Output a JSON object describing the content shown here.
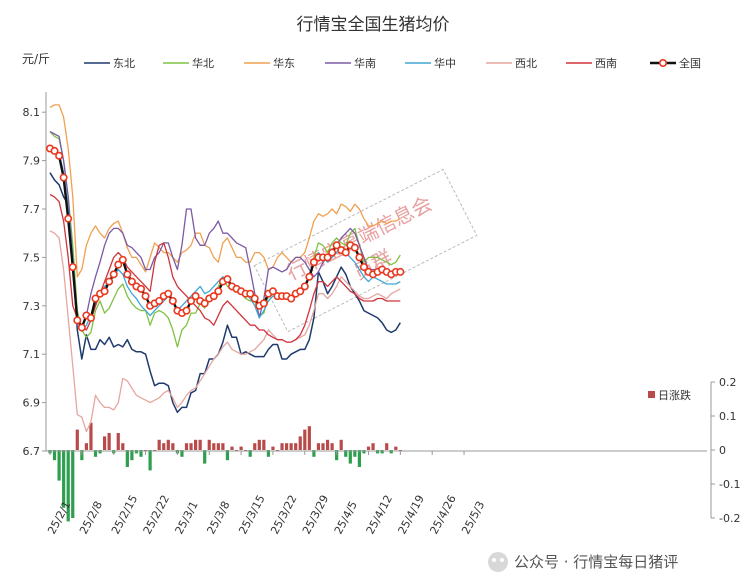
{
  "chart_data": {
    "type": "line",
    "title": "行情宝全国生猪均价",
    "ylabel": "元/斤",
    "ylim": [
      6.7,
      8.2
    ],
    "yticks": [
      "8.1",
      "7.9",
      "7.7",
      "7.5",
      "7.3",
      "7.1",
      "6.9",
      "6.7"
    ],
    "y2lim": [
      -0.2,
      0.2
    ],
    "y2ticks": [
      "0.2",
      "0.1",
      "0",
      "-0.1",
      "-0.2"
    ],
    "xticks": [
      "25/2/1",
      "25/2/8",
      "25/2/15",
      "25/2/22",
      "25/3/1",
      "25/3/8",
      "25/3/15",
      "25/3/22",
      "25/3/29",
      "25/4/5",
      "25/4/12",
      "25/4/19",
      "25/4/26",
      "25/5/3"
    ],
    "legend_position": "top",
    "bar_series": {
      "name": "日涨跌",
      "color": "#b94a4a",
      "color_negative": "#2e9e4f",
      "values": [
        -0.01,
        -0.03,
        -0.09,
        -0.17,
        -0.21,
        -0.2,
        0.06,
        -0.03,
        0.02,
        0.08,
        -0.02,
        -0.01,
        0.04,
        0.05,
        -0.01,
        0.05,
        0.02,
        -0.05,
        -0.03,
        -0.01,
        -0.02,
        0.0,
        -0.06,
        0.0,
        0.03,
        0.02,
        0.03,
        0.02,
        -0.01,
        -0.02,
        0.02,
        0.02,
        0.03,
        0.03,
        -0.04,
        0.03,
        0.02,
        0.02,
        0.02,
        -0.03,
        0.01,
        0.0,
        0.01,
        0.0,
        -0.02,
        0.02,
        0.03,
        0.03,
        -0.02,
        0.01,
        0.0,
        0.02,
        0.02,
        0.02,
        0.02,
        0.04,
        0.06,
        0.07,
        -0.02,
        0.02,
        0.02,
        0.03,
        0.02,
        -0.03,
        0.03,
        -0.02,
        -0.04,
        -0.02,
        -0.05,
        -0.01,
        0.01,
        0.02,
        -0.01,
        -0.01,
        0.02,
        -0.01,
        0.01,
        0.0
      ]
    },
    "series": [
      {
        "name": "东北",
        "color": "#1f3a6e",
        "width": 1.5,
        "values": [
          7.85,
          7.82,
          7.8,
          7.75,
          7.72,
          7.48,
          7.2,
          7.08,
          7.18,
          7.12,
          7.12,
          7.16,
          7.14,
          7.17,
          7.13,
          7.14,
          7.13,
          7.16,
          7.12,
          7.11,
          7.11,
          7.1,
          7.03,
          6.97,
          6.98,
          6.98,
          6.97,
          6.9,
          6.86,
          6.88,
          6.88,
          6.94,
          6.95,
          7.02,
          7.02,
          7.08,
          7.08,
          7.1,
          7.15,
          7.22,
          7.17,
          7.17,
          7.1,
          7.11,
          7.1,
          7.09,
          7.09,
          7.09,
          7.12,
          7.14,
          7.14,
          7.08,
          7.08,
          7.1,
          7.11,
          7.12,
          7.12,
          7.16,
          7.25,
          7.44,
          7.4,
          7.35,
          7.38,
          7.42,
          7.46,
          7.43,
          7.38,
          7.35,
          7.32,
          7.28,
          7.27,
          7.26,
          7.25,
          7.23,
          7.2,
          7.19,
          7.2,
          7.23
        ]
      },
      {
        "name": "华北",
        "color": "#7fc241",
        "width": 1.3,
        "values": [
          8.02,
          8.0,
          7.99,
          7.9,
          7.75,
          7.55,
          7.28,
          7.2,
          7.17,
          7.19,
          7.28,
          7.32,
          7.27,
          7.29,
          7.33,
          7.37,
          7.39,
          7.34,
          7.31,
          7.29,
          7.28,
          7.28,
          7.22,
          7.27,
          7.28,
          7.27,
          7.25,
          7.2,
          7.13,
          7.2,
          7.22,
          7.27,
          7.27,
          7.31,
          7.29,
          7.34,
          7.34,
          7.38,
          7.42,
          7.38,
          7.37,
          7.36,
          7.35,
          7.33,
          7.32,
          7.32,
          7.26,
          7.27,
          7.34,
          7.36,
          7.35,
          7.33,
          7.33,
          7.33,
          7.34,
          7.35,
          7.38,
          7.42,
          7.5,
          7.56,
          7.55,
          7.52,
          7.56,
          7.58,
          7.56,
          7.55,
          7.6,
          7.62,
          7.55,
          7.48,
          7.5,
          7.5,
          7.5,
          7.49,
          7.48,
          7.47,
          7.48,
          7.51
        ]
      },
      {
        "name": "华东",
        "color": "#f0a050",
        "width": 1.3,
        "values": [
          8.12,
          8.13,
          8.13,
          8.08,
          7.95,
          7.75,
          7.42,
          7.45,
          7.55,
          7.6,
          7.63,
          7.6,
          7.58,
          7.62,
          7.64,
          7.65,
          7.6,
          7.54,
          7.5,
          7.5,
          7.47,
          7.44,
          7.5,
          7.56,
          7.54,
          7.52,
          7.52,
          7.5,
          7.48,
          7.52,
          7.53,
          7.55,
          7.6,
          7.6,
          7.55,
          7.54,
          7.5,
          7.48,
          7.56,
          7.58,
          7.54,
          7.5,
          7.5,
          7.48,
          7.48,
          7.52,
          7.52,
          7.5,
          7.45,
          7.46,
          7.5,
          7.52,
          7.5,
          7.48,
          7.5,
          7.5,
          7.52,
          7.58,
          7.65,
          7.68,
          7.67,
          7.68,
          7.7,
          7.68,
          7.72,
          7.71,
          7.69,
          7.72,
          7.7,
          7.66,
          7.63,
          7.63,
          7.64,
          7.65,
          7.64,
          7.65,
          7.65,
          7.66
        ]
      },
      {
        "name": "华南",
        "color": "#7b5aa6",
        "width": 1.3,
        "values": [
          8.02,
          8.01,
          8.0,
          7.9,
          7.75,
          7.5,
          7.22,
          7.2,
          7.26,
          7.35,
          7.42,
          7.48,
          7.55,
          7.6,
          7.62,
          7.62,
          7.6,
          7.55,
          7.54,
          7.52,
          7.5,
          7.45,
          7.45,
          7.5,
          7.52,
          7.56,
          7.56,
          7.5,
          7.45,
          7.55,
          7.7,
          7.7,
          7.58,
          7.55,
          7.55,
          7.6,
          7.62,
          7.65,
          7.6,
          7.6,
          7.58,
          7.56,
          7.55,
          7.54,
          7.45,
          7.35,
          7.25,
          7.33,
          7.45,
          7.46,
          7.45,
          7.44,
          7.45,
          7.48,
          7.5,
          7.5,
          7.48,
          7.45,
          7.42,
          7.44,
          7.48,
          7.5,
          7.52,
          7.55,
          7.58,
          7.6,
          7.62,
          7.6,
          7.55,
          7.5,
          7.45,
          7.45,
          7.45,
          7.44,
          7.44,
          7.43,
          7.43,
          7.43
        ]
      },
      {
        "name": "华中",
        "color": "#3fa6d6",
        "width": 1.3,
        "values": [
          7.95,
          7.95,
          7.93,
          7.85,
          7.7,
          7.5,
          7.25,
          7.2,
          7.22,
          7.26,
          7.3,
          7.35,
          7.38,
          7.4,
          7.42,
          7.45,
          7.43,
          7.38,
          7.35,
          7.33,
          7.3,
          7.28,
          7.26,
          7.28,
          7.3,
          7.32,
          7.34,
          7.32,
          7.28,
          7.3,
          7.32,
          7.34,
          7.36,
          7.38,
          7.35,
          7.36,
          7.38,
          7.4,
          7.42,
          7.4,
          7.38,
          7.37,
          7.36,
          7.35,
          7.33,
          7.3,
          7.25,
          7.28,
          7.32,
          7.34,
          7.34,
          7.33,
          7.33,
          7.34,
          7.35,
          7.36,
          7.38,
          7.42,
          7.48,
          7.52,
          7.5,
          7.48,
          7.5,
          7.52,
          7.54,
          7.52,
          7.5,
          7.48,
          7.45,
          7.42,
          7.4,
          7.42,
          7.41,
          7.4,
          7.39,
          7.39,
          7.39,
          7.4
        ]
      },
      {
        "name": "西北",
        "color": "#e6a6a0",
        "width": 1.3,
        "values": [
          7.61,
          7.6,
          7.58,
          7.45,
          7.25,
          7.05,
          6.85,
          6.84,
          6.78,
          6.82,
          6.93,
          6.9,
          6.88,
          6.88,
          6.87,
          6.9,
          7.0,
          6.99,
          6.96,
          6.93,
          6.92,
          6.91,
          6.9,
          6.91,
          6.92,
          6.94,
          6.95,
          6.92,
          6.88,
          6.9,
          6.93,
          6.95,
          6.96,
          6.99,
          7.02,
          7.05,
          7.08,
          7.1,
          7.13,
          7.15,
          7.12,
          7.11,
          7.1,
          7.1,
          7.11,
          7.12,
          7.14,
          7.16,
          7.2,
          7.18,
          7.16,
          7.16,
          7.15,
          7.15,
          7.16,
          7.17,
          7.18,
          7.22,
          7.28,
          7.35,
          7.35,
          7.33,
          7.35,
          7.38,
          7.42,
          7.4,
          7.38,
          7.36,
          7.34,
          7.33,
          7.33,
          7.34,
          7.35,
          7.34,
          7.33,
          7.35,
          7.36,
          7.37
        ]
      },
      {
        "name": "西南",
        "color": "#d0343c",
        "width": 1.3,
        "values": [
          7.76,
          7.75,
          7.73,
          7.65,
          7.5,
          7.3,
          7.25,
          7.22,
          7.2,
          7.24,
          7.3,
          7.35,
          7.4,
          7.45,
          7.5,
          7.52,
          7.5,
          7.46,
          7.44,
          7.42,
          7.4,
          7.38,
          7.36,
          7.48,
          7.55,
          7.56,
          7.5,
          7.42,
          7.38,
          7.36,
          7.34,
          7.32,
          7.3,
          7.28,
          7.25,
          7.24,
          7.22,
          7.26,
          7.3,
          7.32,
          7.3,
          7.28,
          7.26,
          7.24,
          7.22,
          7.22,
          7.2,
          7.2,
          7.18,
          7.17,
          7.16,
          7.16,
          7.15,
          7.15,
          7.16,
          7.18,
          7.22,
          7.28,
          7.35,
          7.4,
          7.4,
          7.38,
          7.4,
          7.42,
          7.4,
          7.38,
          7.36,
          7.35,
          7.33,
          7.32,
          7.32,
          7.32,
          7.33,
          7.33,
          7.32,
          7.32,
          7.32,
          7.32
        ]
      },
      {
        "name": "全国",
        "color": "#111111",
        "width": 2.4,
        "markers": true,
        "values": [
          7.95,
          7.94,
          7.92,
          7.83,
          7.66,
          7.46,
          7.24,
          7.21,
          7.26,
          7.25,
          7.33,
          7.35,
          7.36,
          7.4,
          7.43,
          7.47,
          7.49,
          7.43,
          7.4,
          7.38,
          7.37,
          7.34,
          7.3,
          7.31,
          7.32,
          7.34,
          7.35,
          7.32,
          7.28,
          7.27,
          7.28,
          7.32,
          7.34,
          7.32,
          7.31,
          7.33,
          7.34,
          7.36,
          7.4,
          7.41,
          7.38,
          7.37,
          7.36,
          7.35,
          7.35,
          7.33,
          7.3,
          7.31,
          7.35,
          7.36,
          7.34,
          7.34,
          7.34,
          7.33,
          7.35,
          7.36,
          7.38,
          7.42,
          7.48,
          7.5,
          7.5,
          7.5,
          7.52,
          7.55,
          7.53,
          7.52,
          7.55,
          7.54,
          7.5,
          7.46,
          7.44,
          7.43,
          7.44,
          7.45,
          7.44,
          7.43,
          7.44,
          7.44
        ]
      }
    ]
  },
  "watermark": {
    "line1": "行情宝高端信息会",
    "line2": "员群"
  },
  "footer": {
    "text": "公众号 · 行情宝每日猪评"
  }
}
